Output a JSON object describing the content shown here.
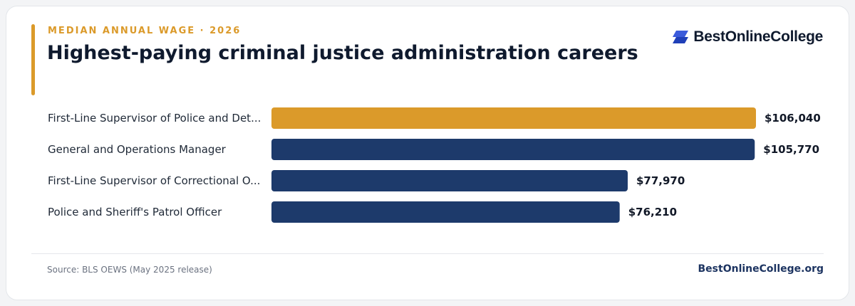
{
  "header": {
    "eyebrow": "MEDIAN ANNUAL WAGE · 2026",
    "title": "Highest-paying criminal justice administration careers"
  },
  "brand": {
    "name": "BestOnlineCollege",
    "icon": "parallelogram-logo-icon",
    "icon_colors": [
      "#3b5bdb",
      "#1f3fb8"
    ]
  },
  "chart_data": {
    "type": "bar",
    "orientation": "horizontal",
    "title": "Highest-paying criminal justice administration careers",
    "xlabel": "",
    "ylabel": "",
    "categories": [
      "First-Line Supervisor of Police and Det...",
      "General and Operations Manager",
      "First-Line Supervisor of Correctional O...",
      "Police and Sheriff's Patrol Officer"
    ],
    "values": [
      106040,
      105770,
      77970,
      76210
    ],
    "value_labels": [
      "$106,040",
      "$105,770",
      "$77,970",
      "$76,210"
    ],
    "highlight_index": 0,
    "colors": {
      "highlight": "#db9a2a",
      "default": "#1d3a6b"
    },
    "xlim": [
      0,
      106040
    ],
    "grid": false,
    "legend": "none"
  },
  "footer": {
    "source": "Source: BLS OEWS (May 2025 release)",
    "site": "BestOnlineCollege.org"
  }
}
